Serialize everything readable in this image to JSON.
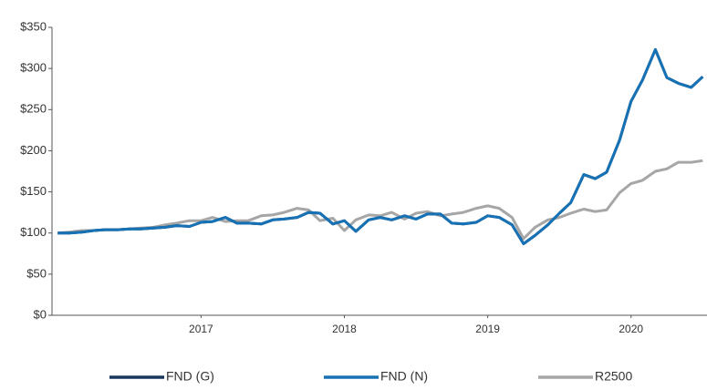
{
  "chart_data": {
    "type": "line",
    "x": [
      2016.0,
      2016.08,
      2016.17,
      2016.25,
      2016.33,
      2016.42,
      2016.5,
      2016.58,
      2016.67,
      2016.75,
      2016.83,
      2016.92,
      2017.0,
      2017.08,
      2017.17,
      2017.25,
      2017.33,
      2017.42,
      2017.5,
      2017.58,
      2017.67,
      2017.75,
      2017.83,
      2017.92,
      2018.0,
      2018.08,
      2018.17,
      2018.25,
      2018.33,
      2018.42,
      2018.5,
      2018.58,
      2018.67,
      2018.75,
      2018.83,
      2018.92,
      2019.0,
      2019.08,
      2019.17,
      2019.25,
      2019.33,
      2019.42,
      2019.5,
      2019.58,
      2019.67,
      2019.75,
      2019.83,
      2019.92,
      2020.0,
      2020.08,
      2020.17,
      2020.25,
      2020.33,
      2020.42,
      2020.5
    ],
    "series": [
      {
        "name": "FND (G)",
        "color": "#17375e",
        "values": [
          100,
          100,
          101,
          103,
          104,
          104,
          105,
          105,
          106,
          107,
          109,
          108,
          113,
          114,
          119,
          112,
          112,
          111,
          116,
          117,
          119,
          125,
          124,
          111,
          115,
          102,
          116,
          119,
          116,
          121,
          117,
          123,
          123,
          112,
          111,
          113,
          121,
          119,
          110,
          87,
          97,
          110,
          124,
          137,
          171,
          166,
          174,
          213,
          260,
          286,
          323,
          289,
          282,
          277,
          290
        ]
      },
      {
        "name": "FND (N)",
        "color": "#1672b5",
        "values": [
          100,
          100,
          101,
          103,
          104,
          104,
          105,
          105,
          106,
          107,
          109,
          108,
          113,
          114,
          119,
          112,
          112,
          111,
          116,
          117,
          119,
          125,
          124,
          111,
          115,
          102,
          116,
          119,
          116,
          121,
          117,
          123,
          123,
          112,
          111,
          113,
          121,
          119,
          110,
          87,
          97,
          110,
          124,
          137,
          171,
          166,
          174,
          213,
          260,
          286,
          323,
          289,
          282,
          277,
          290
        ]
      },
      {
        "name": "R2500",
        "color": "#a6a6a6",
        "values": [
          100,
          101,
          103,
          103,
          104,
          104,
          105,
          106,
          107,
          110,
          112,
          115,
          115,
          119,
          114,
          115,
          115,
          121,
          122,
          125,
          130,
          128,
          115,
          118,
          103,
          116,
          122,
          121,
          125,
          117,
          124,
          126,
          121,
          123,
          125,
          130,
          133,
          130,
          119,
          93,
          107,
          116,
          119,
          124,
          129,
          126,
          128,
          149,
          160,
          164,
          175,
          178,
          186,
          186,
          188
        ]
      }
    ],
    "xlim": [
      2015.96,
      2020.53
    ],
    "xticks": [
      2017,
      2018,
      2019,
      2020
    ],
    "ylim": [
      0,
      350
    ],
    "yticks": [
      {
        "value": 0,
        "label": "$0"
      },
      {
        "value": 50,
        "label": "$50"
      },
      {
        "value": 100,
        "label": "$100"
      },
      {
        "value": 150,
        "label": "$150"
      },
      {
        "value": 200,
        "label": "$200"
      },
      {
        "value": 250,
        "label": "$250"
      },
      {
        "value": 300,
        "label": "$300"
      },
      {
        "value": 350,
        "label": "$350"
      }
    ],
    "grid": false,
    "legend": "bottom"
  }
}
